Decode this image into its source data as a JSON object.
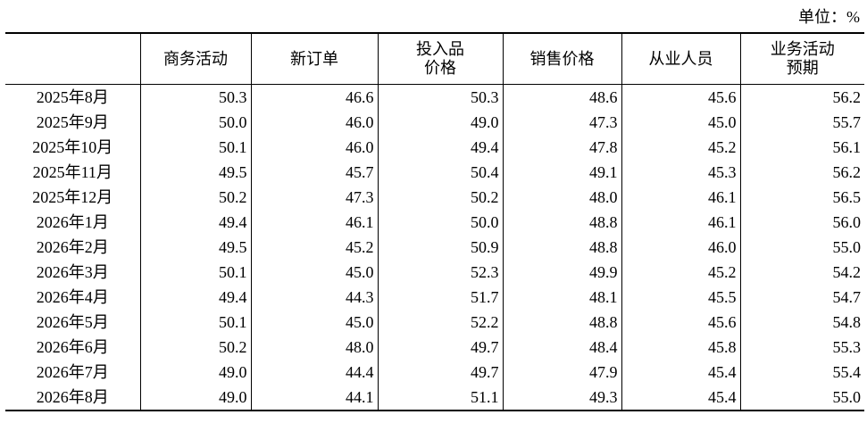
{
  "unit_label": "单位：%",
  "table": {
    "columns": [
      "",
      "商务活动",
      "新订单",
      "投入品\n价格",
      "销售价格",
      "从业人员",
      "业务活动\n预期"
    ],
    "rows": [
      {
        "month": "2025年8月",
        "values": [
          "50.3",
          "46.6",
          "50.3",
          "48.6",
          "45.6",
          "56.2"
        ]
      },
      {
        "month": "2025年9月",
        "values": [
          "50.0",
          "46.0",
          "49.0",
          "47.3",
          "45.0",
          "55.7"
        ]
      },
      {
        "month": "2025年10月",
        "values": [
          "50.1",
          "46.0",
          "49.4",
          "47.8",
          "45.2",
          "56.1"
        ]
      },
      {
        "month": "2025年11月",
        "values": [
          "49.5",
          "45.7",
          "50.4",
          "49.1",
          "45.3",
          "56.2"
        ]
      },
      {
        "month": "2025年12月",
        "values": [
          "50.2",
          "47.3",
          "50.2",
          "48.0",
          "46.1",
          "56.5"
        ]
      },
      {
        "month": "2026年1月",
        "values": [
          "49.4",
          "46.1",
          "50.0",
          "48.8",
          "46.1",
          "56.0"
        ]
      },
      {
        "month": "2026年2月",
        "values": [
          "49.5",
          "45.2",
          "50.9",
          "48.8",
          "46.0",
          "55.0"
        ]
      },
      {
        "month": "2026年3月",
        "values": [
          "50.1",
          "45.0",
          "52.3",
          "49.9",
          "45.2",
          "54.2"
        ]
      },
      {
        "month": "2026年4月",
        "values": [
          "49.4",
          "44.3",
          "51.7",
          "48.1",
          "45.5",
          "54.7"
        ]
      },
      {
        "month": "2026年5月",
        "values": [
          "50.1",
          "45.0",
          "52.2",
          "48.8",
          "45.6",
          "54.8"
        ]
      },
      {
        "month": "2026年6月",
        "values": [
          "50.2",
          "48.0",
          "49.7",
          "48.4",
          "45.8",
          "55.3"
        ]
      },
      {
        "month": "2026年7月",
        "values": [
          "49.0",
          "44.4",
          "49.7",
          "47.9",
          "45.4",
          "55.4"
        ]
      },
      {
        "month": "2026年8月",
        "values": [
          "49.0",
          "44.1",
          "51.1",
          "49.3",
          "45.4",
          "55.0"
        ]
      }
    ]
  }
}
